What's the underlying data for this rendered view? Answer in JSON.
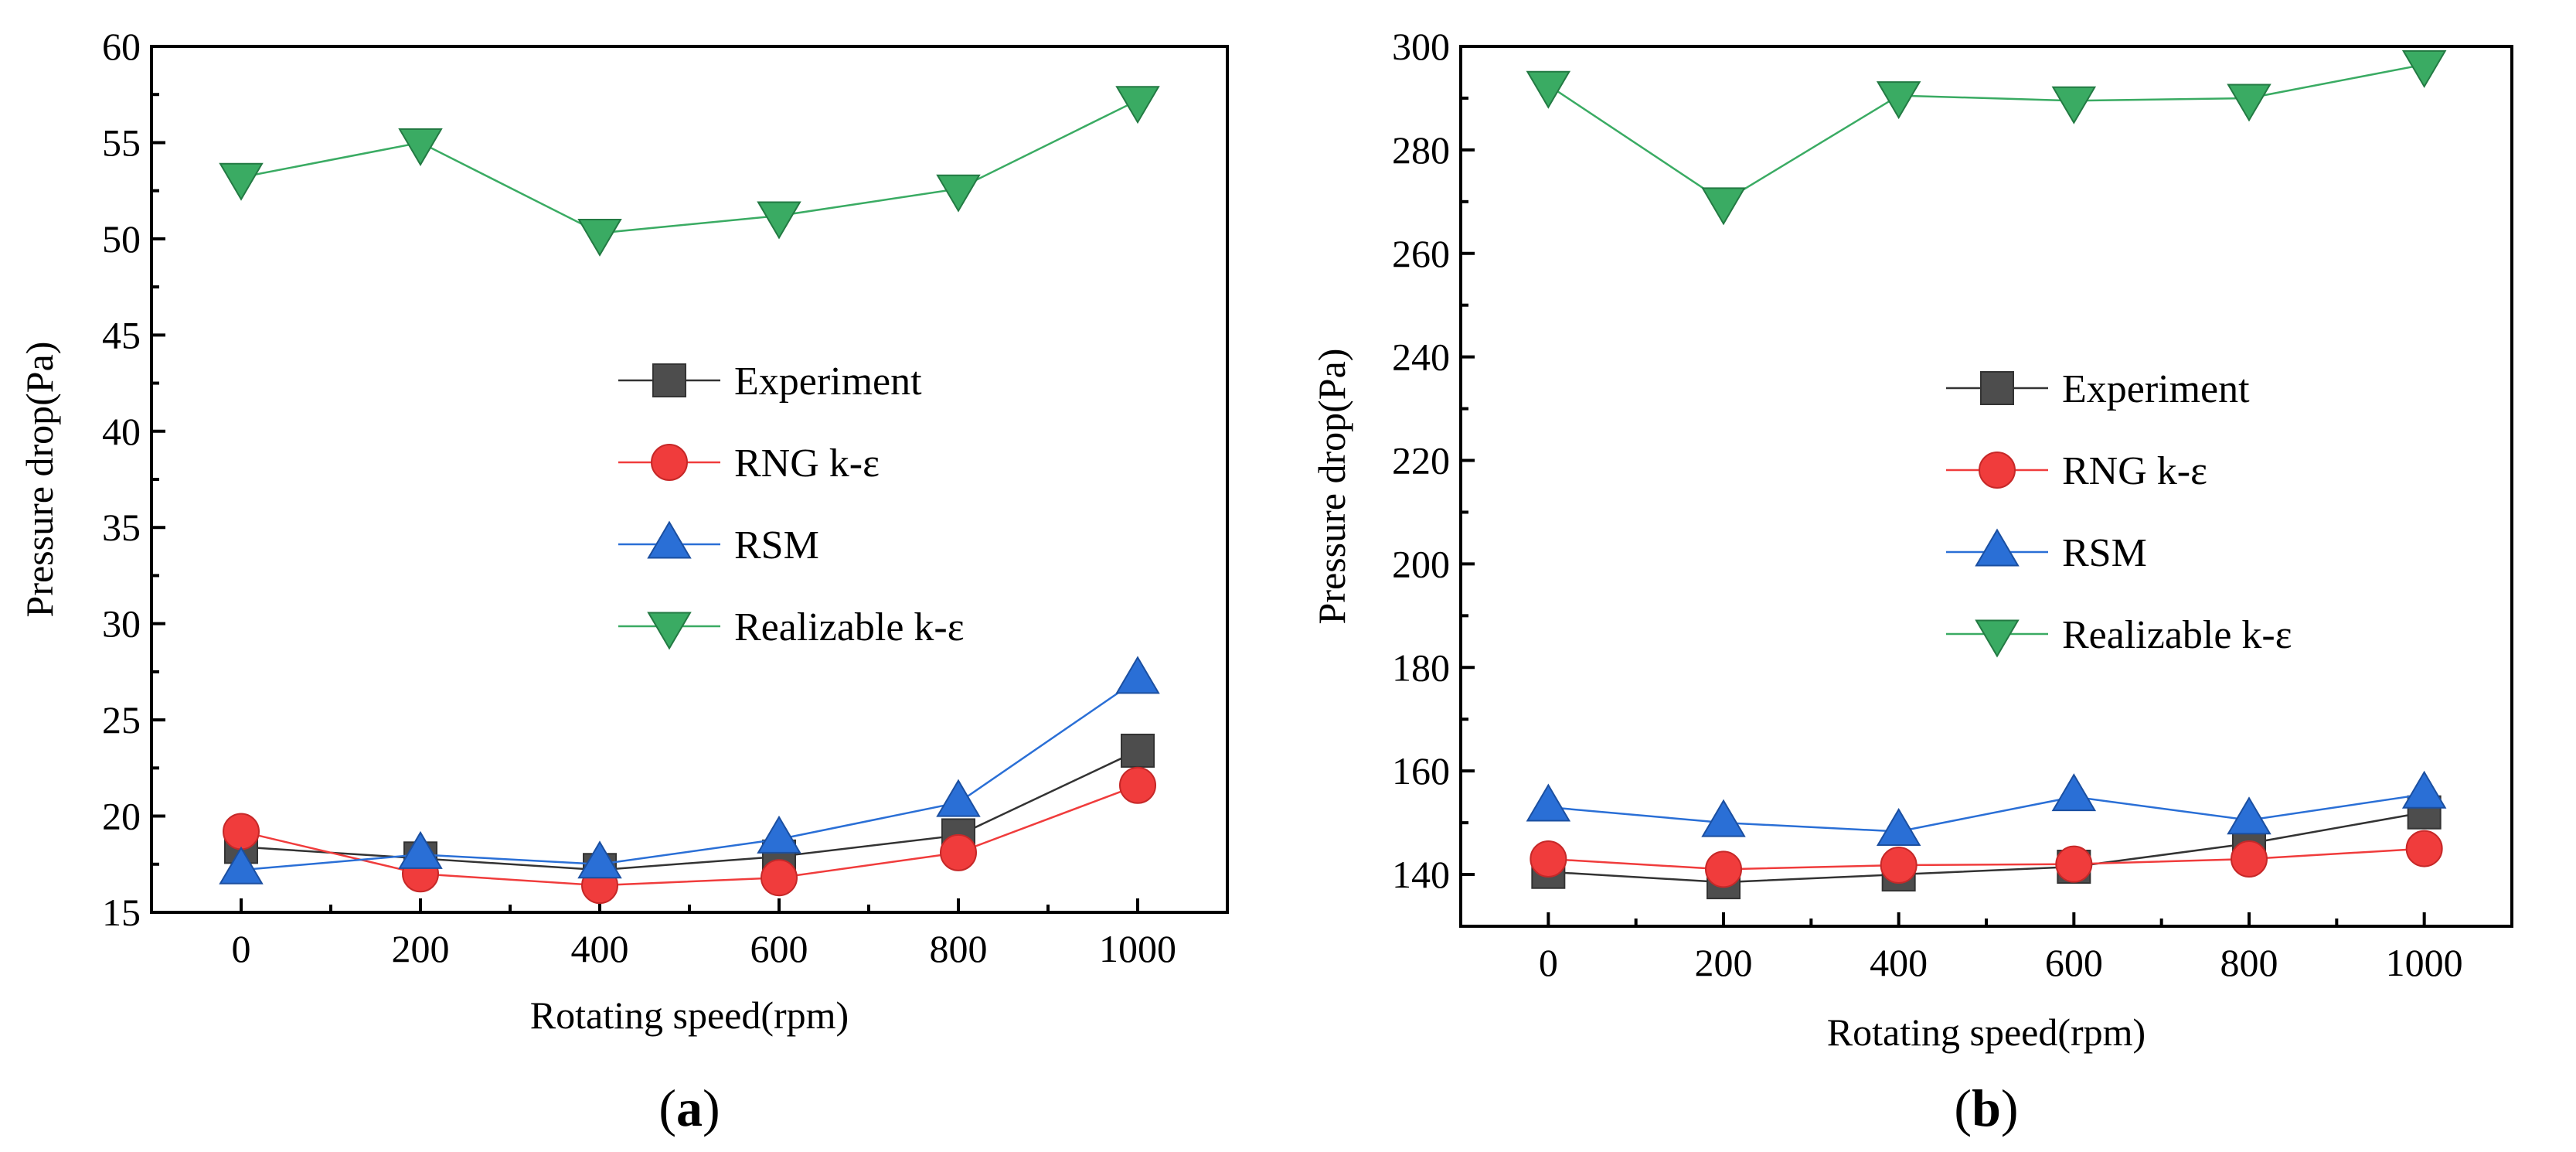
{
  "chart_data": [
    {
      "type": "line",
      "panel_label": "a",
      "xlabel": "Rotating speed(rpm)",
      "ylabel": "Pressure drop(Pa)",
      "x": [
        0,
        200,
        400,
        600,
        800,
        1000
      ],
      "xlim": [
        -100,
        1100
      ],
      "ylim": [
        15,
        60
      ],
      "xticks": [
        0,
        200,
        400,
        600,
        800,
        1000
      ],
      "yticks": [
        15,
        20,
        25,
        30,
        35,
        40,
        45,
        50,
        55,
        60
      ],
      "legend_position": "center-right",
      "series": [
        {
          "name": "Experiment",
          "marker": "square",
          "color": "#4d4d4d",
          "line_color": "#333333",
          "values": [
            18.4,
            17.8,
            17.2,
            17.9,
            19.0,
            23.4
          ]
        },
        {
          "name": "RNG k-ε",
          "marker": "circle",
          "color": "#f03c3c",
          "line_color": "#f03c3c",
          "values": [
            19.2,
            17.0,
            16.4,
            16.8,
            18.1,
            21.6
          ]
        },
        {
          "name": "RSM",
          "marker": "triangle-up",
          "color": "#2a6fd6",
          "line_color": "#2a6fd6",
          "values": [
            17.2,
            18.0,
            17.5,
            18.8,
            20.7,
            27.1
          ]
        },
        {
          "name": "Realizable k-ε",
          "marker": "triangle-down",
          "color": "#3aab63",
          "line_color": "#3aab63",
          "values": [
            53.2,
            55.0,
            50.3,
            51.2,
            52.6,
            57.2
          ]
        }
      ]
    },
    {
      "type": "line",
      "panel_label": "b",
      "xlabel": "Rotating speed(rpm)",
      "ylabel": "Pressure drop(Pa)",
      "x": [
        0,
        200,
        400,
        600,
        800,
        1000
      ],
      "xlim": [
        -100,
        1100
      ],
      "ylim": [
        130,
        300
      ],
      "xticks": [
        0,
        200,
        400,
        600,
        800,
        1000
      ],
      "yticks": [
        140,
        160,
        180,
        200,
        220,
        240,
        260,
        280,
        300
      ],
      "legend_position": "center-right",
      "series": [
        {
          "name": "Experiment",
          "marker": "square",
          "color": "#4d4d4d",
          "line_color": "#333333",
          "values": [
            140.5,
            138.5,
            140.0,
            141.5,
            146.0,
            152.0
          ]
        },
        {
          "name": "RNG k-ε",
          "marker": "circle",
          "color": "#f03c3c",
          "line_color": "#f03c3c",
          "values": [
            143.0,
            141.0,
            141.8,
            142.0,
            143.0,
            145.0
          ]
        },
        {
          "name": "RSM",
          "marker": "triangle-up",
          "color": "#2a6fd6",
          "line_color": "#2a6fd6",
          "values": [
            153.0,
            150.0,
            148.3,
            155.0,
            150.5,
            155.5
          ]
        },
        {
          "name": "Realizable k-ε",
          "marker": "triangle-down",
          "color": "#3aab63",
          "line_color": "#3aab63",
          "values": [
            292.5,
            270.0,
            290.5,
            289.5,
            290.0,
            296.5
          ]
        }
      ]
    }
  ]
}
